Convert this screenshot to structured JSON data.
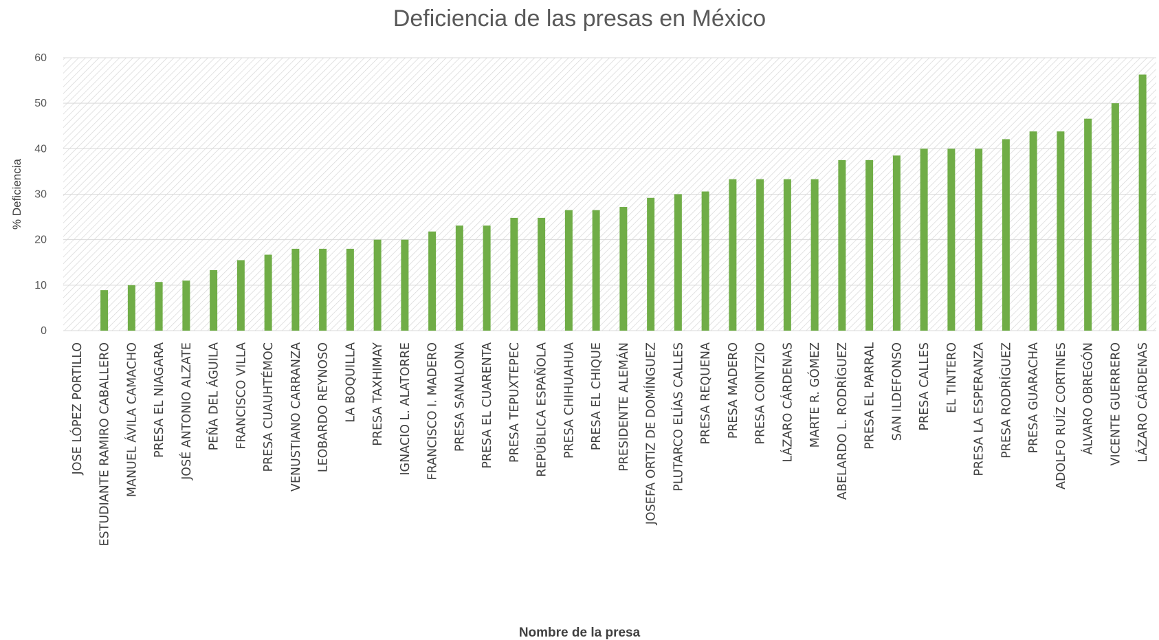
{
  "chart_data": {
    "type": "bar",
    "title": "Deficiencia de las presas en México",
    "xlabel": "Nombre de la presa",
    "ylabel": "% Deficiencia",
    "ylim": [
      0,
      60
    ],
    "yticks": [
      0,
      10,
      20,
      30,
      40,
      50,
      60
    ],
    "grid": true,
    "legend": "none",
    "bar_color": "#70ad47",
    "categories": [
      "JOSE LÓPEZ PORTILLO",
      "ESTUDIANTE RAMIRO CABALLERO",
      "MANUEL ÁVILA CAMACHO",
      "PRESA EL NIAGARA",
      "JOSÉ ANTONIO ALZATE",
      "PEÑA DEL ÁGUILA",
      "FRANCISCO VILLA",
      "PRESA CUAUHTÉMOC",
      "VENUSTIANO CARRANZA",
      "LEOBARDO REYNOSO",
      "LA BOQUILLA",
      "PRESA TAXHIMAY",
      "IGNACIO L. ALATORRE",
      "FRANCISCO I. MADERO",
      "PRESA SANALONA",
      "PRESA EL CUARENTA",
      "PRESA TEPUXTEPEC",
      "REPÚBLICA ESPAÑOLA",
      "PRESA CHIHUAHUA",
      "PRESA EL CHIQUE",
      "PRESIDENTE ALEMÁN",
      "JOSEFA ORTIZ DE DOMÍNGUEZ",
      "PLUTARCO ELÍAS CALLES",
      "PRESA REQUENA",
      "PRESA MADERO",
      "PRESA COINTZIO",
      "LÁZARO CÁRDENAS",
      "MARTE R. GÓMEZ",
      "ABELARDO L. RODRÍGUEZ",
      "PRESA EL PARRAL",
      "SAN ILDEFONSO",
      "PRESA CALLES",
      "EL TINTERO",
      "PRESA LA ESPERANZA",
      "PRESA RODRÍGUEZ",
      "PRESA GUARACHA",
      "ADOLFO RUÍZ CORTINES",
      "ÁLVARO OBREGÓN",
      "VICENTE GUERRERO",
      "LÁZARO CÁRDENAS"
    ],
    "values": [
      0,
      8.9,
      10,
      10.7,
      11,
      13.3,
      15.5,
      16.7,
      18,
      18,
      18,
      20,
      20,
      21.8,
      23.1,
      23.1,
      24.8,
      24.8,
      26.5,
      26.5,
      27.2,
      29.2,
      30,
      30.6,
      33.3,
      33.3,
      33.3,
      33.3,
      37.5,
      37.5,
      38.5,
      40,
      40,
      40,
      42.1,
      43.8,
      43.8,
      46.6,
      50,
      56.3
    ]
  }
}
